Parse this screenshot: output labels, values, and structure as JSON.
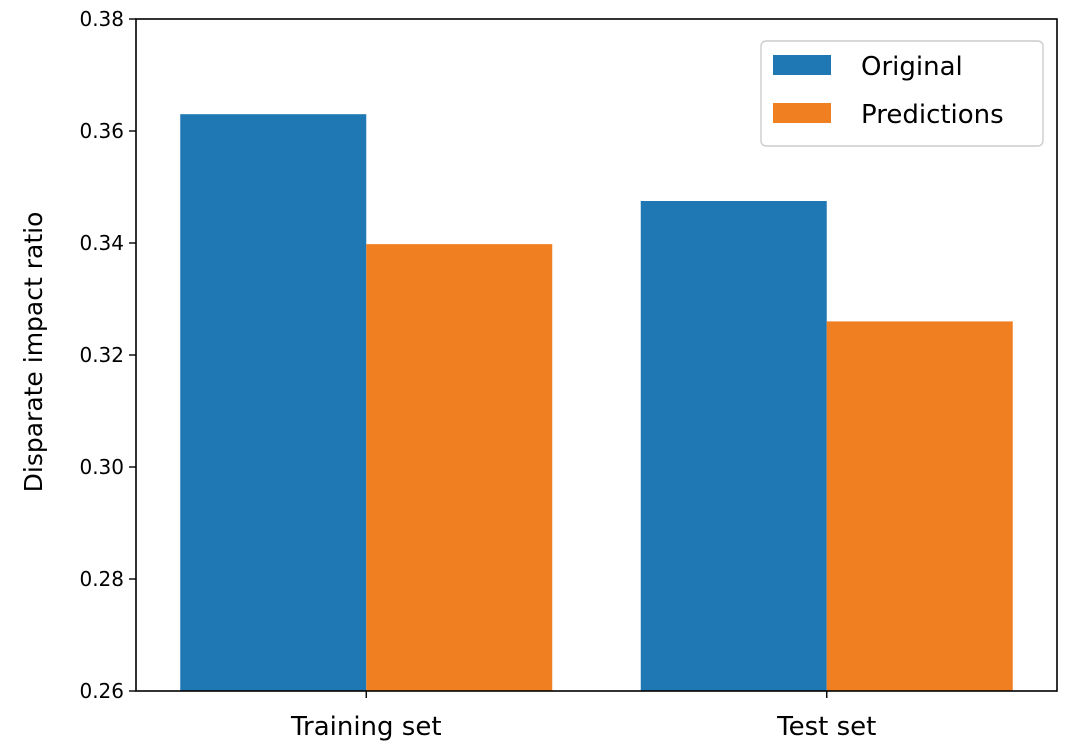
{
  "chart_data": {
    "type": "bar",
    "categories": [
      "Training set",
      "Test set"
    ],
    "series": [
      {
        "name": "Original",
        "values": [
          0.363,
          0.3475
        ],
        "color": "#1f77b4"
      },
      {
        "name": "Predictions",
        "values": [
          0.3398,
          0.326
        ],
        "color": "#f07f22"
      }
    ],
    "ylabel": "Disparate impact ratio",
    "xlabel": "",
    "ylim": [
      0.26,
      0.38
    ],
    "yticks": [
      "0.26",
      "0.28",
      "0.30",
      "0.32",
      "0.34",
      "0.36",
      "0.38"
    ],
    "grid": false,
    "legend_position": "top-right"
  }
}
